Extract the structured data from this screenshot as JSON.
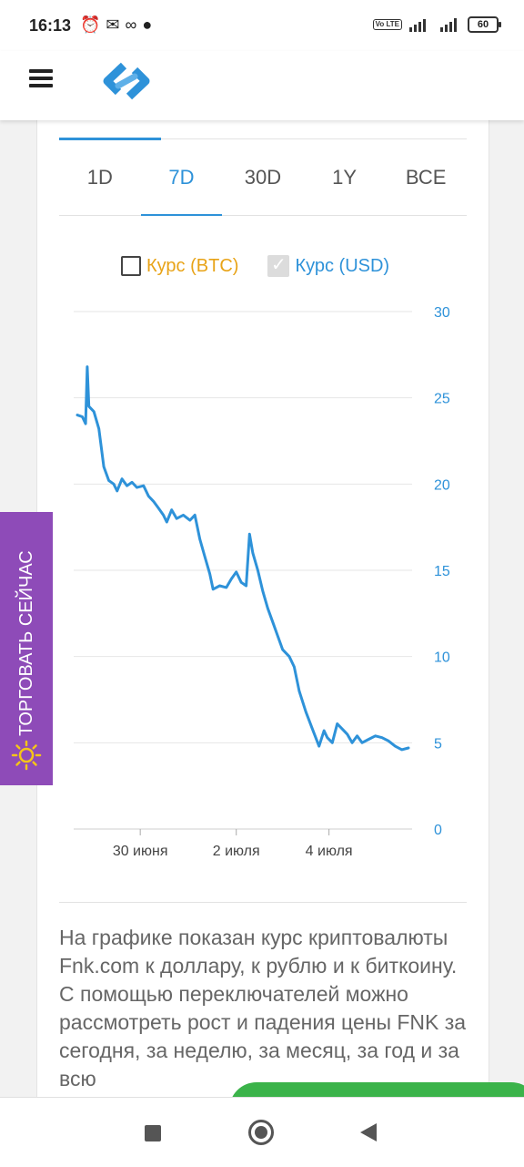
{
  "status_bar": {
    "time": "16:13",
    "battery": "60",
    "network_badge": "Vo LTE",
    "icons": [
      "alarm-icon",
      "messenger-icon",
      "infinity-icon",
      "bomb-icon",
      "signal-icon",
      "battery-icon"
    ]
  },
  "header": {
    "menu_icon": "hamburger-icon",
    "logo_icon": "link-logo-icon"
  },
  "tabs": [
    {
      "label": "1D",
      "active": false
    },
    {
      "label": "7D",
      "active": true
    },
    {
      "label": "30D",
      "active": false
    },
    {
      "label": "1Y",
      "active": false
    },
    {
      "label": "ВСЕ",
      "active": false
    }
  ],
  "legend": {
    "btc_label": "Курс (BTC)",
    "btc_checked": false,
    "usd_label": "Курс (USD)",
    "usd_checked": true
  },
  "colors": {
    "accent": "#2e92d9",
    "btc": "#e8a317",
    "side_tab": "#8e4bb8",
    "green_button": "#3bb34a"
  },
  "chart_data": {
    "type": "line",
    "title": "",
    "xlabel": "",
    "ylabel": "",
    "ylim": [
      0,
      30
    ],
    "y_ticks": [
      0,
      5,
      10,
      15,
      20,
      25,
      30
    ],
    "y_axis_position": "right",
    "x_ticks": [
      {
        "label": "30 июня",
        "t": 0.19
      },
      {
        "label": "2 июля",
        "t": 0.48
      },
      {
        "label": "4 июля",
        "t": 0.76
      }
    ],
    "grid": true,
    "series": [
      {
        "name": "Курс (USD)",
        "color": "#2e92d9",
        "points": [
          [
            0.0,
            24.0
          ],
          [
            0.015,
            23.9
          ],
          [
            0.025,
            23.5
          ],
          [
            0.03,
            26.8
          ],
          [
            0.035,
            24.5
          ],
          [
            0.05,
            24.2
          ],
          [
            0.065,
            23.2
          ],
          [
            0.08,
            21.0
          ],
          [
            0.095,
            20.2
          ],
          [
            0.11,
            20.0
          ],
          [
            0.12,
            19.6
          ],
          [
            0.135,
            20.3
          ],
          [
            0.15,
            19.9
          ],
          [
            0.165,
            20.1
          ],
          [
            0.18,
            19.8
          ],
          [
            0.2,
            19.9
          ],
          [
            0.215,
            19.3
          ],
          [
            0.23,
            19.0
          ],
          [
            0.245,
            18.6
          ],
          [
            0.26,
            18.2
          ],
          [
            0.27,
            17.8
          ],
          [
            0.285,
            18.5
          ],
          [
            0.3,
            18.0
          ],
          [
            0.32,
            18.2
          ],
          [
            0.34,
            17.9
          ],
          [
            0.355,
            18.2
          ],
          [
            0.37,
            16.8
          ],
          [
            0.385,
            15.8
          ],
          [
            0.4,
            14.8
          ],
          [
            0.41,
            13.9
          ],
          [
            0.43,
            14.1
          ],
          [
            0.45,
            14.0
          ],
          [
            0.465,
            14.5
          ],
          [
            0.48,
            14.9
          ],
          [
            0.495,
            14.3
          ],
          [
            0.51,
            14.1
          ],
          [
            0.52,
            17.1
          ],
          [
            0.53,
            16.0
          ],
          [
            0.545,
            15.0
          ],
          [
            0.56,
            13.8
          ],
          [
            0.575,
            12.8
          ],
          [
            0.59,
            12.0
          ],
          [
            0.605,
            11.2
          ],
          [
            0.62,
            10.4
          ],
          [
            0.64,
            10.0
          ],
          [
            0.655,
            9.4
          ],
          [
            0.67,
            8.0
          ],
          [
            0.69,
            6.8
          ],
          [
            0.71,
            5.8
          ],
          [
            0.73,
            4.8
          ],
          [
            0.745,
            5.7
          ],
          [
            0.755,
            5.3
          ],
          [
            0.77,
            5.0
          ],
          [
            0.785,
            6.1
          ],
          [
            0.8,
            5.8
          ],
          [
            0.815,
            5.5
          ],
          [
            0.83,
            5.0
          ],
          [
            0.845,
            5.4
          ],
          [
            0.86,
            5.0
          ],
          [
            0.88,
            5.2
          ],
          [
            0.9,
            5.4
          ],
          [
            0.92,
            5.3
          ],
          [
            0.94,
            5.1
          ],
          [
            0.96,
            4.8
          ],
          [
            0.98,
            4.6
          ],
          [
            1.0,
            4.7
          ]
        ]
      }
    ]
  },
  "description": "На графике показан курс криптовалюты Fnk.com к доллару, к рублю и к биткоину. С помощью переключателей можно рассмотреть рост и падения цены FNK за сегодня, за неделю, за месяц, за год и за всю",
  "side_tab": {
    "label": "ТОРГОВАТЬ СЕЙЧАС",
    "icon": "sun-icon"
  },
  "navbar": {
    "recent_icon": "square-icon",
    "home_icon": "circle-icon",
    "back_icon": "triangle-back-icon"
  }
}
